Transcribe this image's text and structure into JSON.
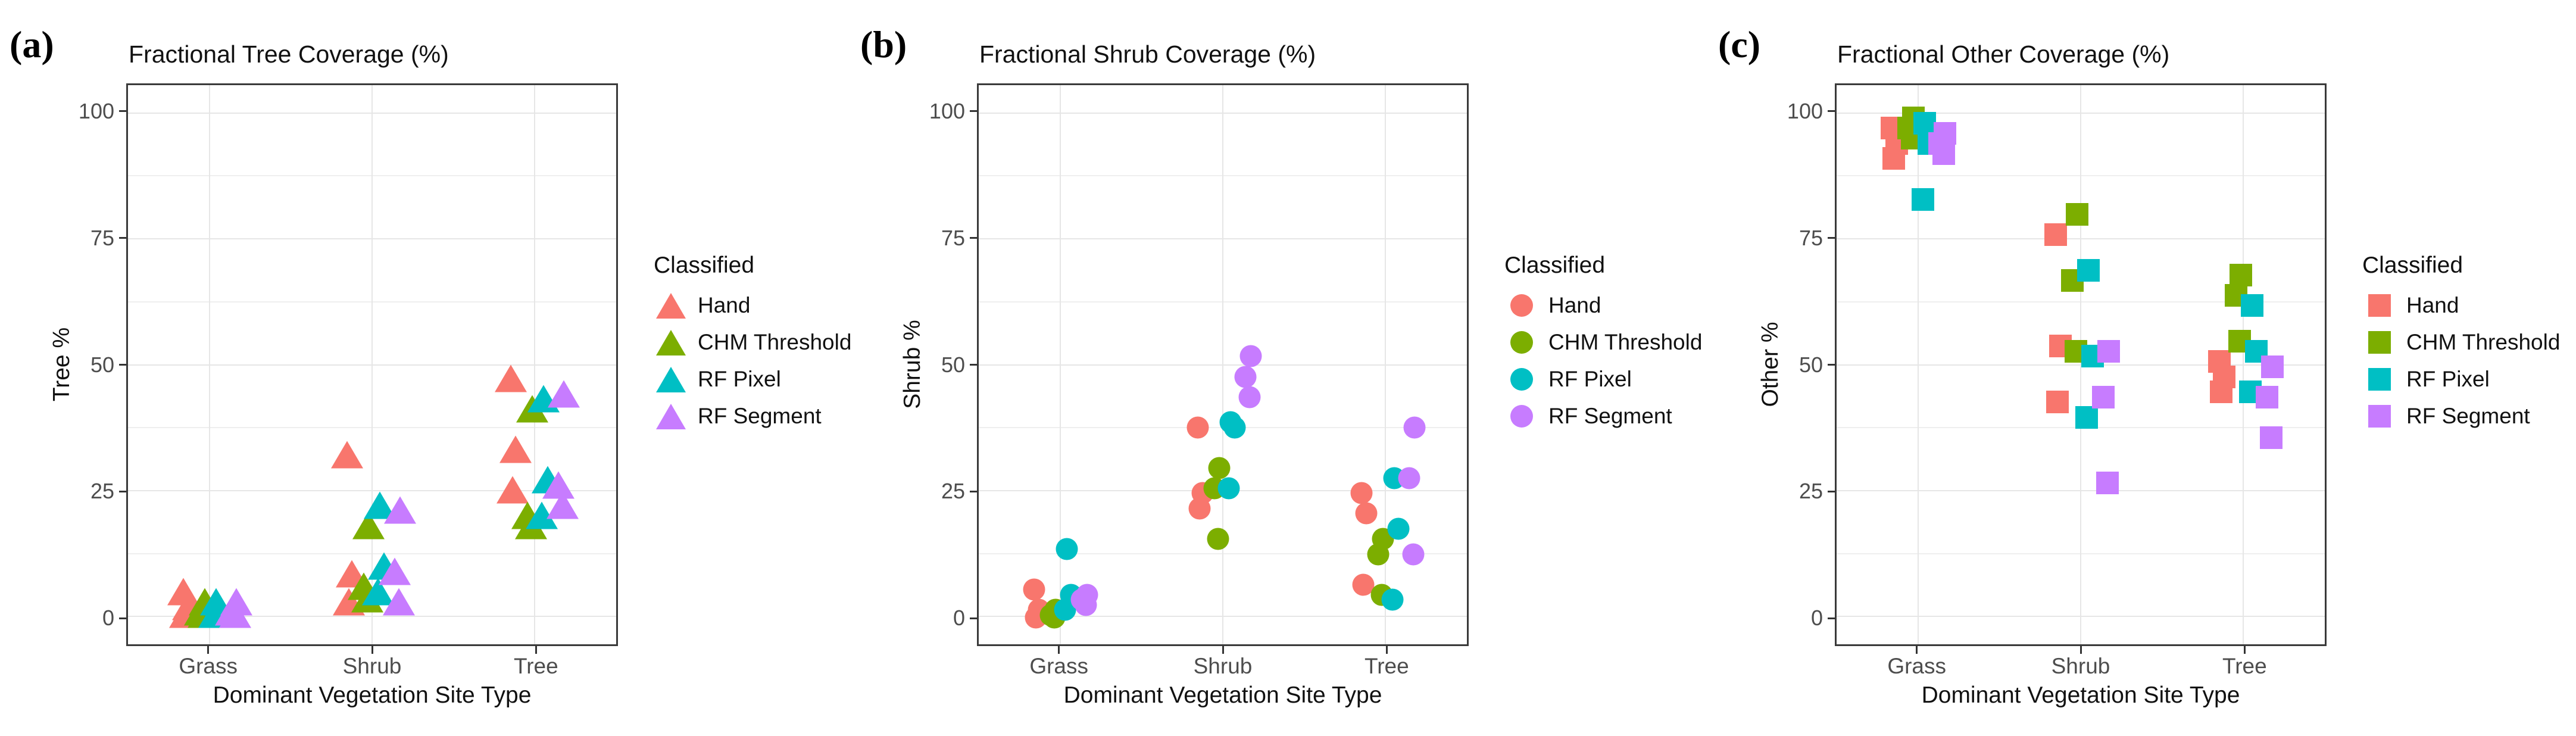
{
  "figure": {
    "panel_labels": [
      "(a)",
      "(b)",
      "(c)"
    ],
    "legend_title": "Classified",
    "series": [
      {
        "name": "Hand",
        "color": "#F8766D"
      },
      {
        "name": "CHM Threshold",
        "color": "#7CAE00"
      },
      {
        "name": "RF Pixel",
        "color": "#00BFC4"
      },
      {
        "name": "RF Segment",
        "color": "#C77CFF"
      }
    ],
    "categories": [
      "Grass",
      "Shrub",
      "Tree"
    ],
    "y_ticks": [
      "0",
      "25",
      "50",
      "75",
      "100"
    ],
    "x_axis_label": "Dominant Vegetation Site Type"
  },
  "chart_data": [
    {
      "type": "scatter",
      "title": "Fractional Tree Coverage (%)",
      "xlabel": "Dominant Vegetation Site Type",
      "ylabel": "Tree %",
      "ylim": [
        0,
        100
      ],
      "marker": "triangle",
      "grid": true,
      "legend_position": "right",
      "categories": [
        "Grass",
        "Shrub",
        "Tree"
      ],
      "series": [
        {
          "name": "Hand",
          "color": "#F8766D",
          "values": {
            "Grass": [
              5,
              2,
              0.5
            ],
            "Shrub": [
              32,
              8.5,
              3
            ],
            "Tree": [
              47,
              33,
              25
            ]
          }
        },
        {
          "name": "CHM Threshold",
          "color": "#7CAE00",
          "values": {
            "Grass": [
              3,
              1,
              0.5
            ],
            "Shrub": [
              18,
              6,
              3.5
            ],
            "Tree": [
              41,
              20,
              18
            ]
          }
        },
        {
          "name": "RF Pixel",
          "color": "#00BFC4",
          "values": {
            "Grass": [
              3,
              1.5,
              0.5
            ],
            "Shrub": [
              22,
              10,
              5
            ],
            "Tree": [
              43,
              27,
              20
            ]
          }
        },
        {
          "name": "RF Segment",
          "color": "#C77CFF",
          "values": {
            "Grass": [
              3,
              1,
              0.5
            ],
            "Shrub": [
              21,
              9,
              3
            ],
            "Tree": [
              44,
              26,
              22
            ]
          }
        }
      ]
    },
    {
      "type": "scatter",
      "title": "Fractional Shrub Coverage (%)",
      "xlabel": "Dominant Vegetation Site Type",
      "ylabel": "Shrub %",
      "ylim": [
        0,
        100
      ],
      "marker": "circle",
      "grid": true,
      "legend_position": "right",
      "categories": [
        "Grass",
        "Shrub",
        "Tree"
      ],
      "series": [
        {
          "name": "Hand",
          "color": "#F8766D",
          "values": {
            "Grass": [
              6,
              2,
              0.5
            ],
            "Shrub": [
              38,
              25,
              22
            ],
            "Tree": [
              25,
              21,
              7
            ]
          }
        },
        {
          "name": "CHM Threshold",
          "color": "#7CAE00",
          "values": {
            "Grass": [
              2,
              1,
              0.5
            ],
            "Shrub": [
              30,
              26,
              16
            ],
            "Tree": [
              16,
              13,
              5
            ]
          }
        },
        {
          "name": "RF Pixel",
          "color": "#00BFC4",
          "values": {
            "Grass": [
              14,
              5,
              2
            ],
            "Shrub": [
              39,
              38,
              26
            ],
            "Tree": [
              28,
              18,
              4
            ]
          }
        },
        {
          "name": "RF Segment",
          "color": "#C77CFF",
          "values": {
            "Grass": [
              5,
              4,
              3
            ],
            "Shrub": [
              52,
              48,
              44
            ],
            "Tree": [
              38,
              28,
              13
            ]
          }
        }
      ]
    },
    {
      "type": "scatter",
      "title": "Fractional Other Coverage (%)",
      "xlabel": "Dominant Vegetation Site Type",
      "ylabel": "Other %",
      "ylim": [
        0,
        100
      ],
      "marker": "square",
      "grid": true,
      "legend_position": "right",
      "categories": [
        "Grass",
        "Shrub",
        "Tree"
      ],
      "series": [
        {
          "name": "Hand",
          "color": "#F8766D",
          "values": {
            "Grass": [
              97,
              94,
              91
            ],
            "Shrub": [
              76,
              54,
              43
            ],
            "Tree": [
              51,
              48,
              45
            ]
          }
        },
        {
          "name": "CHM Threshold",
          "color": "#7CAE00",
          "values": {
            "Grass": [
              99,
              97,
              95
            ],
            "Shrub": [
              80,
              67,
              53
            ],
            "Tree": [
              68,
              64,
              55
            ]
          }
        },
        {
          "name": "RF Pixel",
          "color": "#00BFC4",
          "values": {
            "Grass": [
              98,
              94,
              83
            ],
            "Shrub": [
              69,
              52,
              40
            ],
            "Tree": [
              62,
              53,
              45
            ]
          }
        },
        {
          "name": "RF Segment",
          "color": "#C77CFF",
          "values": {
            "Grass": [
              96,
              94,
              92
            ],
            "Shrub": [
              53,
              44,
              27
            ],
            "Tree": [
              50,
              44,
              36
            ]
          }
        }
      ]
    }
  ]
}
